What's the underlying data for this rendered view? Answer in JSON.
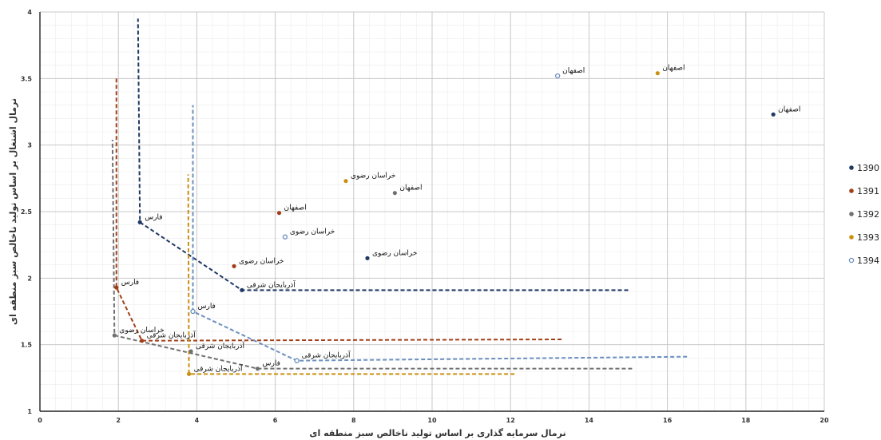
{
  "chart_data": {
    "type": "scatter",
    "title": "",
    "xlabel": "نرمال سرمایه گذاری بر اساس تولید ناخالص سبز منطقه ای",
    "ylabel": "نرمال اشتغال بر اساس تولید ناخالص سبز منطقه ای",
    "xlim": [
      0,
      20
    ],
    "ylim": [
      1,
      4
    ],
    "x_ticks": [
      0,
      2,
      4,
      6,
      8,
      10,
      12,
      14,
      16,
      18,
      20
    ],
    "y_ticks": [
      1,
      1.5,
      2,
      2.5,
      3,
      3.5,
      4
    ],
    "grid": true,
    "legend_position": "right",
    "series": [
      {
        "name": "1390",
        "color": "#1f3864",
        "marker": "filled",
        "points": [
          {
            "x": 18.7,
            "y": 3.23,
            "label": "اصفهان"
          },
          {
            "x": 8.35,
            "y": 2.15,
            "label": "خراسان رضوی"
          },
          {
            "x": 5.15,
            "y": 1.91,
            "label": "آذربایجان شرقی"
          },
          {
            "x": 2.55,
            "y": 2.42,
            "label": "فارس"
          }
        ],
        "frontier": [
          [
            15.0,
            1.91
          ],
          [
            5.15,
            1.91
          ],
          [
            2.55,
            2.42
          ],
          [
            2.5,
            3.95
          ]
        ]
      },
      {
        "name": "1391",
        "color": "#a23e17",
        "marker": "filled",
        "points": [
          {
            "x": 6.1,
            "y": 2.49,
            "label": "اصفهان"
          },
          {
            "x": 4.95,
            "y": 2.09,
            "label": "خراسان رضوی"
          },
          {
            "x": 2.6,
            "y": 1.53,
            "label": "آذربایجان شرقی"
          },
          {
            "x": 1.95,
            "y": 1.93,
            "label": "فارس"
          }
        ],
        "frontier": [
          [
            13.3,
            1.54
          ],
          [
            2.6,
            1.53
          ],
          [
            1.95,
            1.93
          ],
          [
            1.95,
            3.5
          ]
        ]
      },
      {
        "name": "1392",
        "color": "#707070",
        "marker": "filled",
        "points": [
          {
            "x": 9.05,
            "y": 2.64,
            "label": "اصفهان"
          },
          {
            "x": 1.9,
            "y": 1.57,
            "label": "خراسان رضوی"
          },
          {
            "x": 3.85,
            "y": 1.45,
            "label": "آذربایجان شرقی"
          },
          {
            "x": 5.55,
            "y": 1.32,
            "label": "فارس"
          }
        ],
        "frontier": [
          [
            15.1,
            1.32
          ],
          [
            5.55,
            1.32
          ],
          [
            1.9,
            1.57
          ],
          [
            1.85,
            3.04
          ]
        ]
      },
      {
        "name": "1393",
        "color": "#c9900f",
        "marker": "filled",
        "points": [
          {
            "x": 15.75,
            "y": 3.54,
            "label": "اصفهان"
          },
          {
            "x": 7.8,
            "y": 2.73,
            "label": "خراسان رضوی"
          },
          {
            "x": 3.8,
            "y": 1.28,
            "label": "آذربایجان شرقی"
          }
        ],
        "frontier": [
          [
            12.1,
            1.28
          ],
          [
            3.8,
            1.28
          ],
          [
            3.78,
            2.78
          ]
        ]
      },
      {
        "name": "1394",
        "color": "#6b8fc0",
        "marker": "open",
        "points": [
          {
            "x": 13.2,
            "y": 3.52,
            "label": "اصفهان"
          },
          {
            "x": 6.25,
            "y": 2.31,
            "label": "خراسان رضوی"
          },
          {
            "x": 6.55,
            "y": 1.38,
            "label": "آذربایجان شرقی"
          },
          {
            "x": 3.9,
            "y": 1.75,
            "label": "فارس"
          }
        ],
        "frontier": [
          [
            16.5,
            1.41
          ],
          [
            6.55,
            1.38
          ],
          [
            3.9,
            1.75
          ],
          [
            3.9,
            3.3
          ]
        ]
      }
    ]
  }
}
